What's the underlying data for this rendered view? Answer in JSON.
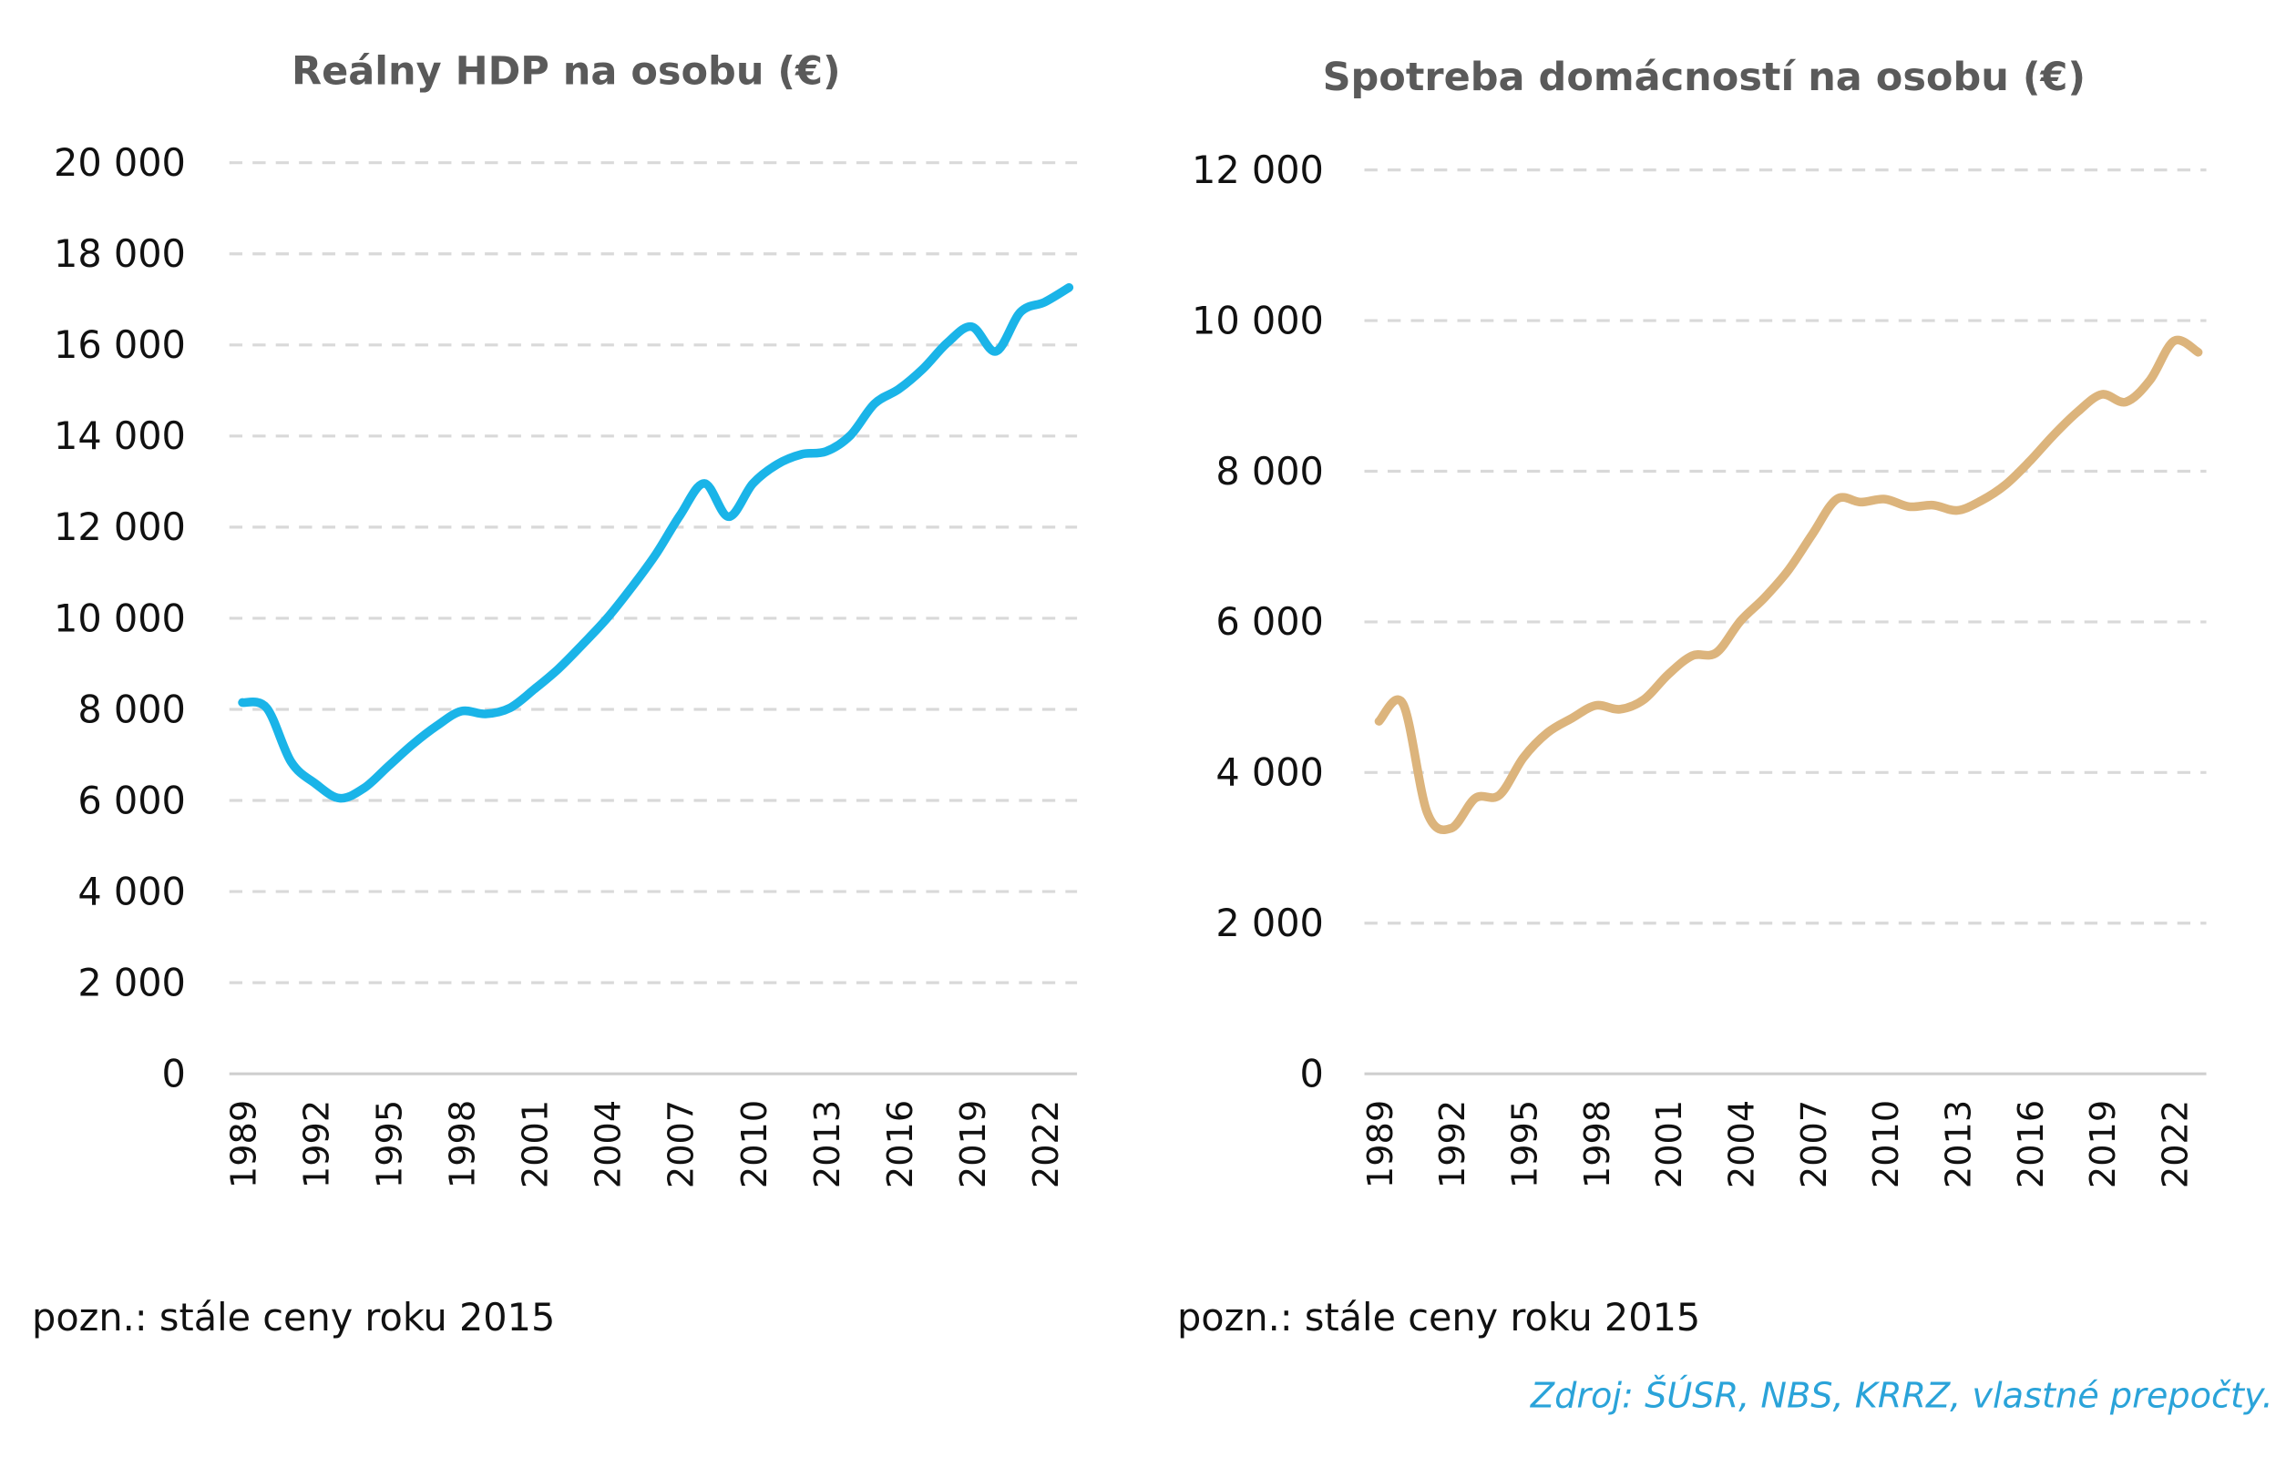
{
  "chart_data": [
    {
      "type": "line",
      "title": "Reálny HDP na osobu (€)",
      "note": "pozn.: stále ceny roku 2015",
      "color": "#1ab4e8",
      "ylim": [
        0,
        20000
      ],
      "yticks": [
        0,
        2000,
        4000,
        6000,
        8000,
        10000,
        12000,
        14000,
        16000,
        18000,
        20000
      ],
      "ytick_labels": [
        "0",
        "2 000",
        "4 000",
        "6 000",
        "8 000",
        "10 000",
        "12 000",
        "14 000",
        "16 000",
        "18 000",
        "20 000"
      ],
      "xticks": [
        "1989",
        "1992",
        "1995",
        "1998",
        "2001",
        "2004",
        "2007",
        "2010",
        "2013",
        "2016",
        "2019",
        "2022"
      ],
      "grid": true,
      "x": [
        1989,
        1990,
        1991,
        1992,
        1993,
        1994,
        1995,
        1996,
        1997,
        1998,
        1999,
        2000,
        2001,
        2002,
        2003,
        2004,
        2005,
        2006,
        2007,
        2008,
        2009,
        2010,
        2011,
        2012,
        2013,
        2014,
        2015,
        2016,
        2017,
        2018,
        2019,
        2020,
        2021,
        2022,
        2023
      ],
      "values": [
        8150,
        8030,
        6850,
        6370,
        6050,
        6270,
        6750,
        7230,
        7640,
        7960,
        7900,
        8030,
        8440,
        8890,
        9430,
        10000,
        10670,
        11400,
        12260,
        12960,
        12230,
        12960,
        13380,
        13600,
        13660,
        14010,
        14710,
        15030,
        15480,
        16050,
        16400,
        15860,
        16720,
        16940,
        17260
      ]
    },
    {
      "type": "line",
      "title": "Spotreba domácností na osobu (€)",
      "note": "pozn.: stále ceny roku 2015",
      "color": "#dcb47c",
      "ylim": [
        0,
        12000
      ],
      "yticks": [
        0,
        2000,
        4000,
        6000,
        8000,
        10000,
        12000
      ],
      "ytick_labels": [
        "0",
        "2 000",
        "4 000",
        "6 000",
        "8 000",
        "10 000",
        "12 000"
      ],
      "xticks": [
        "1989",
        "1992",
        "1995",
        "1998",
        "2001",
        "2004",
        "2007",
        "2010",
        "2013",
        "2016",
        "2019",
        "2022"
      ],
      "grid": true,
      "x": [
        1989,
        1990,
        1991,
        1992,
        1993,
        1994,
        1995,
        1996,
        1997,
        1998,
        1999,
        2000,
        2001,
        2002,
        2003,
        2004,
        2005,
        2006,
        2007,
        2008,
        2009,
        2010,
        2011,
        2012,
        2013,
        2014,
        2015,
        2016,
        2017,
        2018,
        2019,
        2020,
        2021,
        2022,
        2023
      ],
      "values": [
        4680,
        4910,
        3470,
        3260,
        3660,
        3700,
        4200,
        4530,
        4720,
        4890,
        4840,
        4970,
        5300,
        5550,
        5590,
        6010,
        6320,
        6690,
        7170,
        7630,
        7590,
        7630,
        7530,
        7550,
        7480,
        7610,
        7820,
        8130,
        8480,
        8790,
        9020,
        8920,
        9210,
        9730,
        9580
      ]
    }
  ],
  "source": "Zdroj: ŠÚSR, NBS, KRRZ, vlastné prepočty."
}
